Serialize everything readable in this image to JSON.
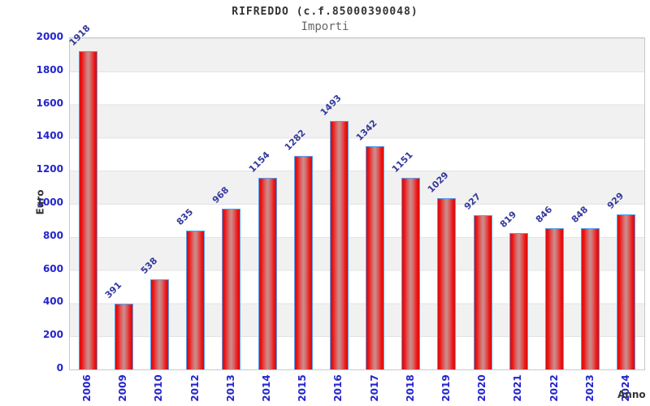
{
  "header": {
    "title": "RIFREDDO (c.f.85000390048)",
    "subtitle": "Importi"
  },
  "chart_data": {
    "type": "bar",
    "title": "RIFREDDO (c.f.85000390048)",
    "subtitle": "Importi",
    "categories": [
      "2006",
      "2009",
      "2010",
      "2012",
      "2013",
      "2014",
      "2015",
      "2016",
      "2017",
      "2018",
      "2019",
      "2020",
      "2021",
      "2022",
      "2023",
      "2024"
    ],
    "values": [
      1918,
      391,
      538,
      835,
      968,
      1154,
      1282,
      1493,
      1342,
      1151,
      1029,
      927,
      819,
      846,
      848,
      929
    ],
    "xlabel": "Anno",
    "ylabel": "Euro",
    "ylim": [
      0,
      2000
    ],
    "ytick_step": 200,
    "yticks": [
      0,
      200,
      400,
      600,
      800,
      1000,
      1200,
      1400,
      1600,
      1800,
      2000
    ],
    "grid": "horizontal alternating bands every 200 units",
    "legend_position": "none",
    "value_labels_rotation_deg": -45,
    "x_tick_rotation_deg": -90
  },
  "colors": {
    "tick_label": "#2424cd",
    "value_label": "#33399b",
    "bar_red_edge": "#d40d0d",
    "bar_red_bright": "#ee1717",
    "bar_center_light": "#c99090",
    "bar_border": "#55a0ee",
    "band_gray": "#f1f1f1",
    "band_white": "#ffffff",
    "plot_border": "#c9c9c9",
    "title_text": "#333333",
    "subtitle_text": "#666666"
  }
}
